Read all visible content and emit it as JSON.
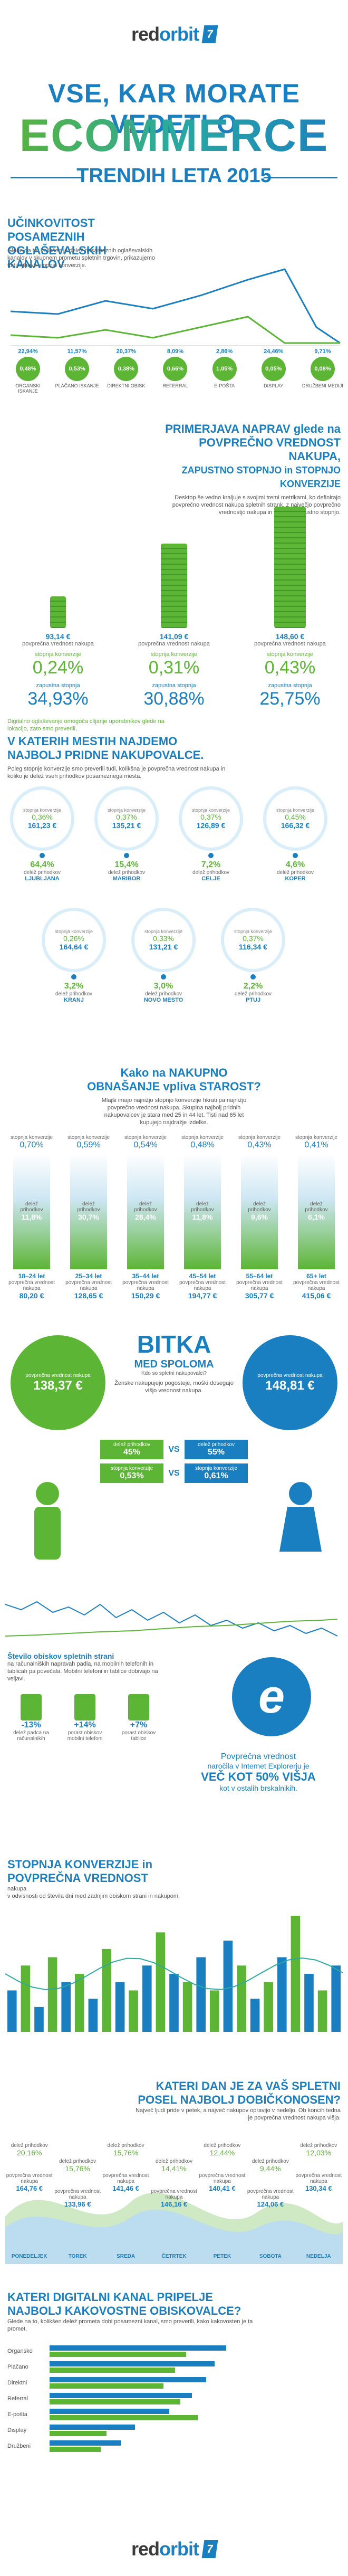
{
  "brand": {
    "red": "red",
    "orbit": "orbit",
    "mark": "7"
  },
  "title": {
    "line1": "VSE, KAR MORATE VEDETI O",
    "line2": "ECOMMERCE",
    "line3": "TRENDIH LETA 2015"
  },
  "s1": {
    "heading": "UČINKOVITOST POSAMEZNIH OGLAŠEVALSKIH KANALOV",
    "desc": "Glede na to, kolikšen je delež posameznih oglaševalskih kanalov v skupnem prometu spletnih trgovin, prikazujemo tudi njihovo stopnjo konverzije.",
    "channels": [
      {
        "name": "ORGANSKI ISKANJE",
        "share": "22,94%",
        "conv": "0,48%"
      },
      {
        "name": "PLAČANO ISKANJE",
        "share": "11,57%",
        "conv": "0,53%"
      },
      {
        "name": "DIREKTNI OBISK",
        "share": "20,37%",
        "conv": "0,38%"
      },
      {
        "name": "REFERRAL",
        "share": "8,09%",
        "conv": "0,66%"
      },
      {
        "name": "E-POŠTA",
        "share": "2,86%",
        "conv": "1,05%"
      },
      {
        "name": "DISPLAY",
        "share": "24,46%",
        "conv": "0,05%"
      },
      {
        "name": "DRUŽBENI MEDIJI",
        "share": "9,71%",
        "conv": "0,08%"
      }
    ]
  },
  "s2": {
    "heading_a": "PRIMERJAVA NAPRAV glede na",
    "heading_b": "POVPREČNO VREDNOST NAKUPA,",
    "heading_c": "ZAPUSTNO STOPNJO in STOPNJO KONVERZIJE",
    "desc": "Desktop še vedno kraljuje s svojimi tremi metrikami, ko definirajo povprečno vrednost nakupa spletnih strank, z največjo povprečno vrednostjo nakupa in najnižjo zapustno stopnjo.",
    "label_avg": "povprečna vrednost nakupa",
    "label_conv": "stopnja konverzije",
    "label_bounce": "zapustna stopnja",
    "devices": [
      {
        "name": "pametni telefon",
        "avg": "93,14 €",
        "conv": "0,24%",
        "bounce": "34,93%"
      },
      {
        "name": "tablica",
        "avg": "141,09 €",
        "conv": "0,31%",
        "bounce": "30,88%"
      },
      {
        "name": "računalnik",
        "avg": "148,60 €",
        "conv": "0,43%",
        "bounce": "25,75%"
      }
    ]
  },
  "s3": {
    "intro": "Digitalno oglaševanje omogoča ciljanje uporabnikov glede na lokacijo, zato smo preverili,",
    "heading_a": "V KATERIH MESTIH NAJDEMO",
    "heading_b": "NAJBOLJ PRIDNE NAKUPOVALCE.",
    "desc": "Poleg stopnje konverzije smo preverili tudi, kolikšna je povprečna vrednost nakupa in koliko je delež vseh prihodkov posameznega mesta.",
    "cities": [
      {
        "name": "LJUBLJANA",
        "conv": "0,36%",
        "avg": "161,23 €",
        "share": "64,4%"
      },
      {
        "name": "MARIBOR",
        "conv": "0,37%",
        "avg": "135,21 €",
        "share": "15,4%"
      },
      {
        "name": "CELJE",
        "conv": "0,37%",
        "avg": "126,89 €",
        "share": "7,2%"
      },
      {
        "name": "KOPER",
        "conv": "0,45%",
        "avg": "166,32 €",
        "share": "4,6%"
      },
      {
        "name": "KRANJ",
        "conv": "0,26%",
        "avg": "164,64 €",
        "share": "3,2%"
      },
      {
        "name": "NOVO MESTO",
        "conv": "0,33%",
        "avg": "131,21 €",
        "share": "3,0%"
      },
      {
        "name": "PTUJ",
        "conv": "0,37%",
        "avg": "116,34 €",
        "share": "2,2%"
      }
    ],
    "label_conv": "stopnja konverzije",
    "label_avg": "povprečna vrednost nakupa",
    "label_share": "delež prihodkov"
  },
  "s4": {
    "heading_a": "Kako na NAKUPNO",
    "heading_b": "OBNAŠANJE vpliva STAROST?",
    "desc": "Mlajši imajo najnižjo stopnjo konverzije hkrati pa najnižjo povprečno vrednost nakupa. Skupina najbolj pridnih nakupovalcev je stara med 25 in 44 let. Tisti nad 65 let kupujejo najdražje izdelke.",
    "ages": [
      {
        "range": "18–24 let",
        "conv": "0,70%",
        "share": "11,8%",
        "avg": "80,20 €"
      },
      {
        "range": "25–34 let",
        "conv": "0,59%",
        "share": "30,7%",
        "avg": "128,65 €"
      },
      {
        "range": "35–44 let",
        "conv": "0,54%",
        "share": "28,4%",
        "avg": "150,29 €"
      },
      {
        "range": "45–54 let",
        "conv": "0,48%",
        "share": "11,8%",
        "avg": "194,77 €"
      },
      {
        "range": "55–64 let",
        "conv": "0,43%",
        "share": "9,6%",
        "avg": "305,77 €"
      },
      {
        "range": "65+ let",
        "conv": "0,41%",
        "share": "6,1%",
        "avg": "415,06 €"
      }
    ],
    "label_conv": "stopnja konverzije",
    "label_share": "delež prihodkov",
    "label_avg": "povprečna vrednost nakupa"
  },
  "s5": {
    "heading": "BITKA",
    "sub": "MED SPOLOMA",
    "question": "Kdo so spletni nakupovalci?",
    "desc": "Ženske nakupujejo pogosteje, moški dosegajo višjo vrednost nakupa.",
    "male_avg": "138,37 €",
    "female_avg": "148,81 €",
    "label_avg": "povprečna vrednost nakupa",
    "rows": [
      {
        "label": "delež prihodkov",
        "left": "45%",
        "right": "55%"
      },
      {
        "label": "stopnja konverzije",
        "left": "0,53%",
        "right": "0,61%"
      }
    ],
    "vs": "VS"
  },
  "s6": {
    "heading": "Število obiskov spletnih strani",
    "desc": "na računalniških napravah padla, na mobilnih telefonih in tablicah pa povečala. Mobilni telefoni in tablice dobivajo na veljavi.",
    "stats": [
      {
        "label": "delež padca na računalnikih",
        "value": "-13%"
      },
      {
        "label": "porast obiskov mobilni telefoni",
        "value": "+14%"
      },
      {
        "label": "porast obiskov tablice",
        "value": "+7%"
      }
    ],
    "ie_text_a": "Povprečna vrednost",
    "ie_text_b": "naročila v Internet Explorerju je",
    "ie_big": "VEČ KOT 50% VIŠJA",
    "ie_text_c": "kot v ostalih brskalnikih."
  },
  "s7": {
    "heading_a": "STOPNJA KONVERZIJE in",
    "heading_b": "POVPREČNA VREDNOST",
    "heading_c": "nakupa",
    "desc": "v odvisnosti od števila dni med zadnjim obiskom strani in nakupom.",
    "bars": [
      5,
      8,
      3,
      9,
      6,
      7,
      4,
      10,
      6,
      5,
      8,
      12,
      7,
      6,
      9,
      5,
      11,
      8,
      4,
      6,
      9,
      14,
      7,
      5,
      8
    ],
    "ylabels": [
      "0%",
      "5%",
      "10%"
    ]
  },
  "s8": {
    "heading_a": "KATERI DAN JE ZA VAŠ SPLETNI",
    "heading_b": "POSEL NAJBOLJ DOBIČKONOSEN?",
    "desc": "Največ ljudi pride v petek, a največ nakupov opravijo v nedeljo. Ob koncih tedna je povprečna vrednost nakupa višja.",
    "days": [
      {
        "day": "PONEDELJEK",
        "share": "20,16%",
        "avg": "164,76 €"
      },
      {
        "day": "TOREK",
        "share": "15,76%",
        "avg": "133,96 €"
      },
      {
        "day": "SREDA",
        "share": "15,76%",
        "avg": "141,46 €"
      },
      {
        "day": "ČETRTEK",
        "share": "14,41%",
        "avg": "146,16 €"
      },
      {
        "day": "PETEK",
        "share": "12,44%",
        "avg": "140,41 €"
      },
      {
        "day": "SOBOTA",
        "share": "9,44%",
        "avg": "124,06 €"
      },
      {
        "day": "NEDELJA",
        "share": "12,03%",
        "avg": "130,34 €"
      }
    ],
    "label_share": "delež prihodkov",
    "label_avg": "povprečna vrednost nakupa"
  },
  "s9": {
    "heading_a": "KATERI DIGITALNI KANAL PRIPELJE",
    "heading_b": "NAJBOLJ KAKOVOSTNE OBISKOVALCE?",
    "desc": "Glede na to, kolikšen delež prometa dobi posamezni kanal, smo preverili, kako kakovosten je ta promet.",
    "rows": [
      {
        "name": "Organsko",
        "v1": 62,
        "v2": 48
      },
      {
        "name": "Plačano",
        "v1": 58,
        "v2": 44
      },
      {
        "name": "Direktni",
        "v1": 55,
        "v2": 40
      },
      {
        "name": "Referral",
        "v1": 50,
        "v2": 46
      },
      {
        "name": "E-pošta",
        "v1": 42,
        "v2": 52
      },
      {
        "name": "Display",
        "v1": 30,
        "v2": 20
      },
      {
        "name": "Družbeni",
        "v1": 25,
        "v2": 18
      }
    ],
    "axis": [
      "0",
      "1",
      "2",
      "3"
    ]
  },
  "colors": {
    "blue": "#1a7fc1",
    "green": "#5cb535",
    "teal": "#2aa9a0",
    "gray": "#e6e6e6"
  }
}
